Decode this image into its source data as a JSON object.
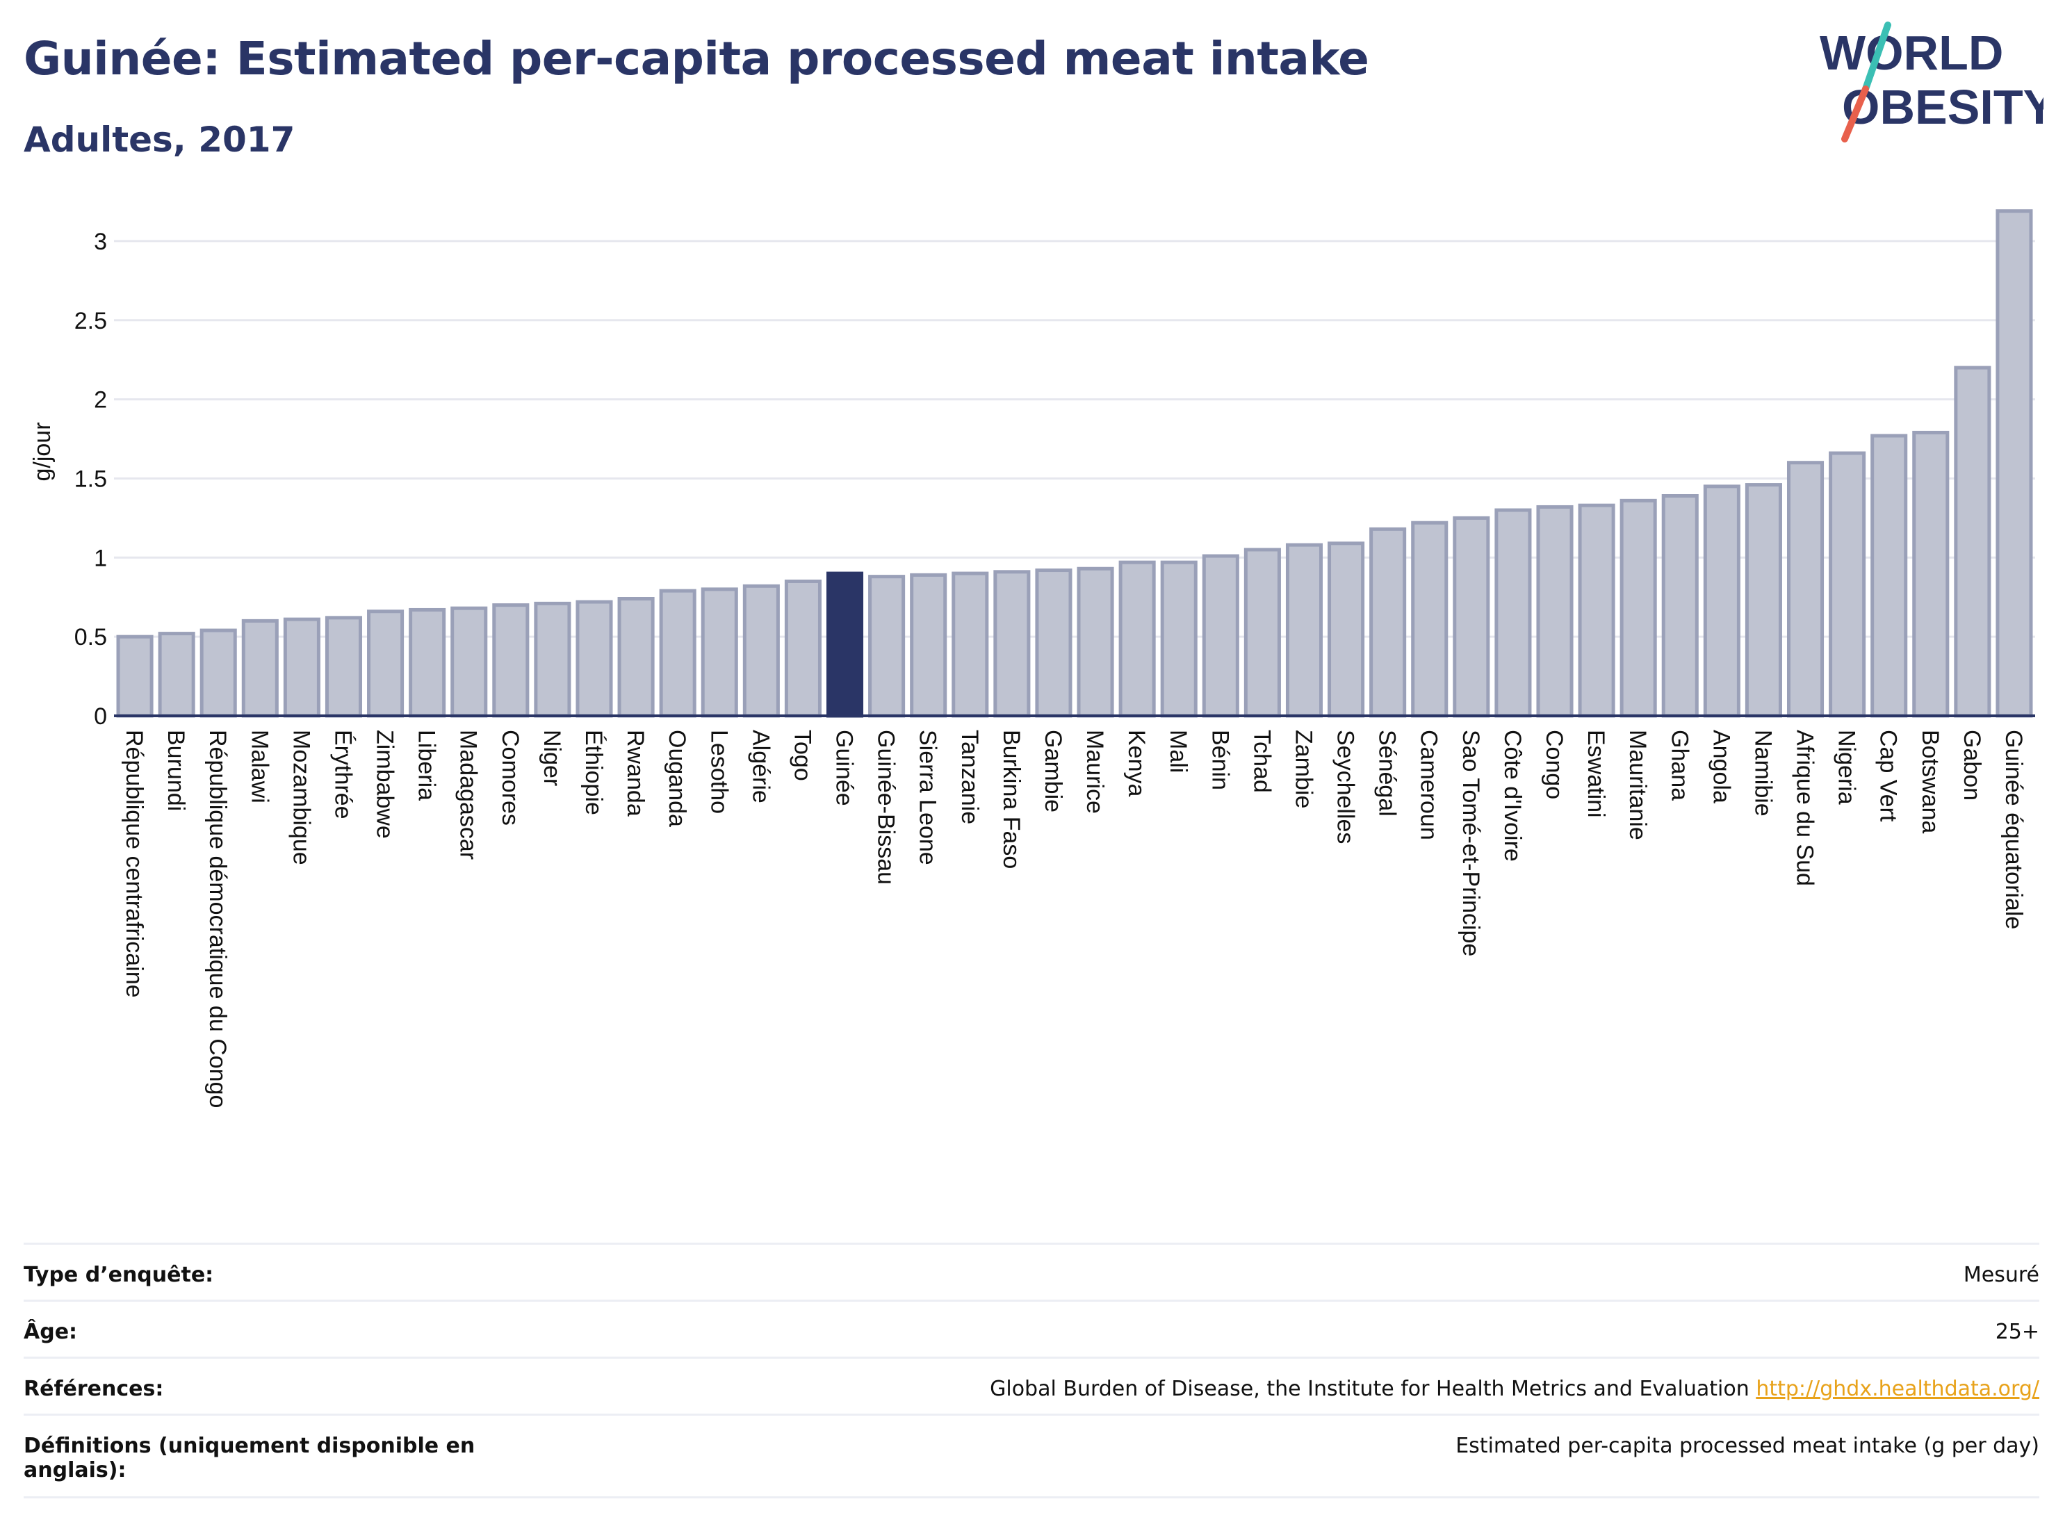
{
  "header": {
    "title": "Guinée: Estimated per-capita processed meat intake",
    "subtitle": "Adultes, 2017"
  },
  "logo": {
    "line1": "WORLD",
    "line2": "OBESITY",
    "colors": {
      "text": "#2a3566",
      "slash_teal": "#3bbfb4",
      "slash_red": "#e8604c"
    }
  },
  "colors": {
    "bar_fill": "#bfc3d1",
    "bar_stroke": "#9aa0b8",
    "highlight": "#2a3566",
    "grid": "#e6e7ee",
    "axis": "#2a3566"
  },
  "chart_data": {
    "type": "bar",
    "ylabel": "g/jour",
    "ylim": [
      0,
      3.25
    ],
    "yticks": [
      0,
      0.5,
      1,
      1.5,
      2,
      2.5,
      3
    ],
    "ytick_labels": [
      "0",
      "0.5",
      "1",
      "1.5",
      "2",
      "2.5",
      "3"
    ],
    "grid": true,
    "highlight": "Guinée",
    "categories": [
      "République centrafricaine",
      "Burundi",
      "République démocratique du Congo",
      "Malawi",
      "Mozambique",
      "Érythrée",
      "Zimbabwe",
      "Liberia",
      "Madagascar",
      "Comores",
      "Niger",
      "Éthiopie",
      "Rwanda",
      "Ouganda",
      "Lesotho",
      "Algérie",
      "Togo",
      "Guinée",
      "Guinée-Bissau",
      "Sierra Leone",
      "Tanzanie",
      "Burkina Faso",
      "Gambie",
      "Maurice",
      "Kenya",
      "Mali",
      "Bénin",
      "Tchad",
      "Zambie",
      "Seychelles",
      "Sénégal",
      "Cameroun",
      "Sao Tomé-et-Principe",
      "Côte d'Ivoire",
      "Congo",
      "Eswatini",
      "Mauritanie",
      "Ghana",
      "Angola",
      "Namibie",
      "Afrique du Sud",
      "Nigeria",
      "Cap Vert",
      "Botswana",
      "Gabon",
      "Guinée équatoriale"
    ],
    "values": [
      0.5,
      0.52,
      0.54,
      0.6,
      0.61,
      0.62,
      0.66,
      0.67,
      0.68,
      0.7,
      0.71,
      0.72,
      0.74,
      0.79,
      0.8,
      0.82,
      0.85,
      0.9,
      0.88,
      0.89,
      0.9,
      0.91,
      0.92,
      0.93,
      0.97,
      0.97,
      1.01,
      1.05,
      1.08,
      1.09,
      1.18,
      1.22,
      1.25,
      1.3,
      1.32,
      1.33,
      1.36,
      1.39,
      1.45,
      1.46,
      1.6,
      1.66,
      1.77,
      1.79,
      2.2,
      3.19
    ]
  },
  "info_table": [
    {
      "label": "Type d’enquête:",
      "value": "Mesuré"
    },
    {
      "label": "Âge:",
      "value": "25+"
    },
    {
      "label": "Références:",
      "value": "Global Burden of Disease, the Institute for Health Metrics and Evaluation",
      "link": "http://ghdx.healthdata.org/"
    },
    {
      "label": "Définitions (uniquement disponible en anglais):",
      "value": "Estimated per-capita processed meat intake (g per day)"
    }
  ]
}
